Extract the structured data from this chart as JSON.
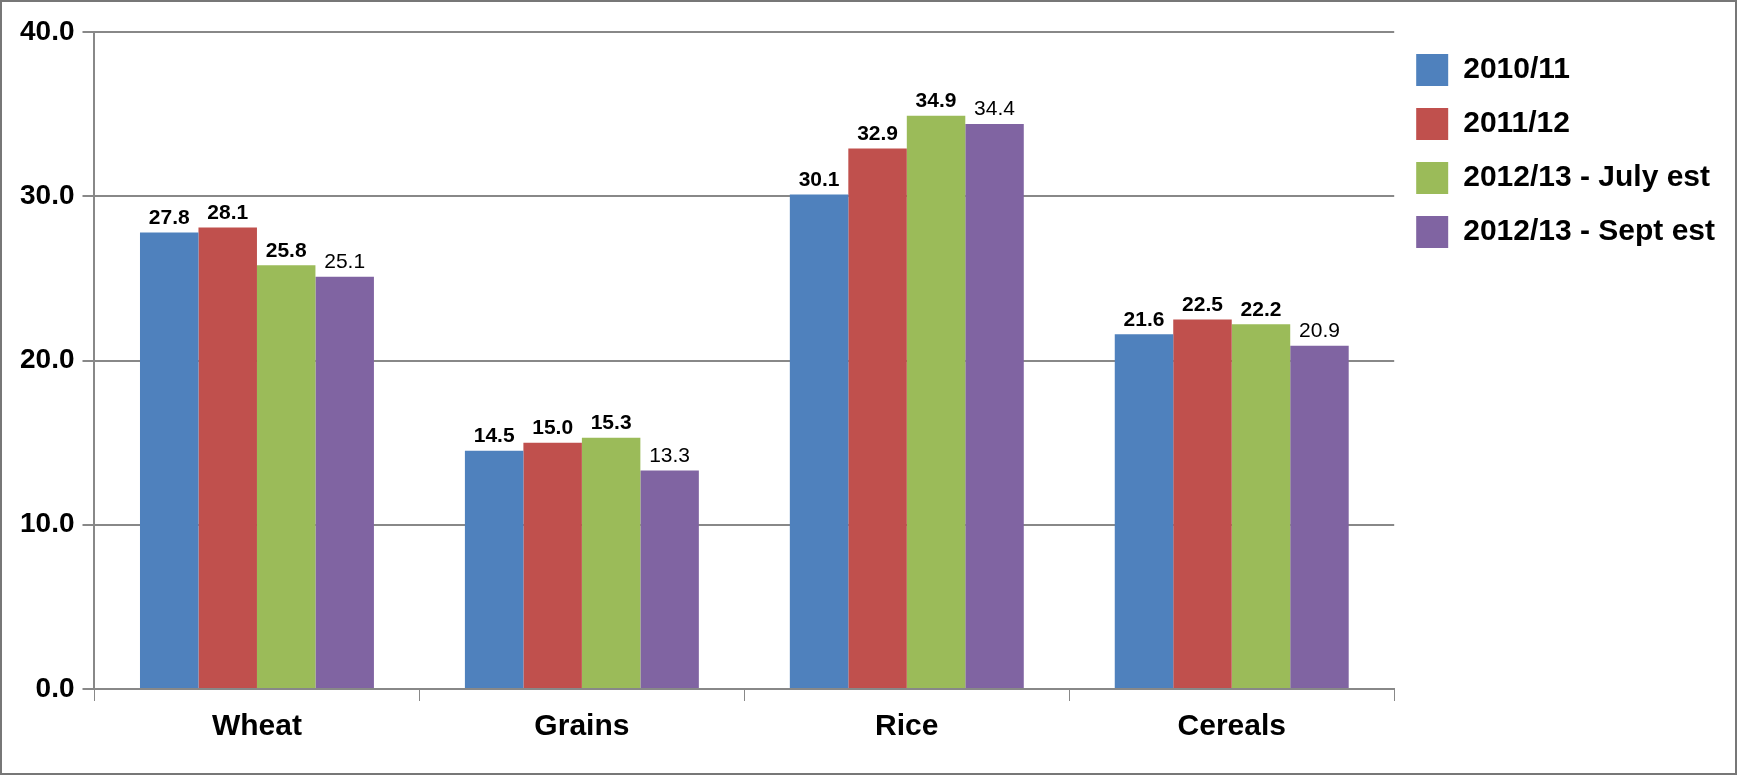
{
  "chart_data": {
    "type": "bar",
    "categories": [
      "Wheat",
      "Grains",
      "Rice",
      "Cereals"
    ],
    "series": [
      {
        "name": "2010/11",
        "color": "#4f81bd",
        "values": [
          27.8,
          14.5,
          30.1,
          21.6
        ],
        "value_labels": [
          "27.8",
          "14.5",
          "30.1",
          "21.6"
        ]
      },
      {
        "name": "2011/12",
        "color": "#c0504d",
        "values": [
          28.1,
          15.0,
          32.9,
          22.5
        ],
        "value_labels": [
          "28.1",
          "15.0",
          "32.9",
          "22.5"
        ]
      },
      {
        "name": "2012/13 - July est",
        "color": "#9bbb59",
        "values": [
          25.8,
          15.3,
          34.9,
          22.2
        ],
        "value_labels": [
          "25.8",
          "15.3",
          "34.9",
          "22.2"
        ]
      },
      {
        "name": "2012/13 - Sept est",
        "color": "#8064a2",
        "values": [
          25.1,
          13.3,
          34.4,
          20.9
        ],
        "value_labels": [
          "25.1",
          "13.3",
          "34.4",
          "20.9"
        ]
      }
    ],
    "ylim": [
      0,
      40
    ],
    "yticks": [
      {
        "value": 0,
        "label": "0.0"
      },
      {
        "value": 10,
        "label": "10.0"
      },
      {
        "value": 20,
        "label": "20.0"
      },
      {
        "value": 30,
        "label": "30.0"
      },
      {
        "value": 40,
        "label": "40.0"
      }
    ],
    "grid": "y",
    "legend": "right"
  }
}
